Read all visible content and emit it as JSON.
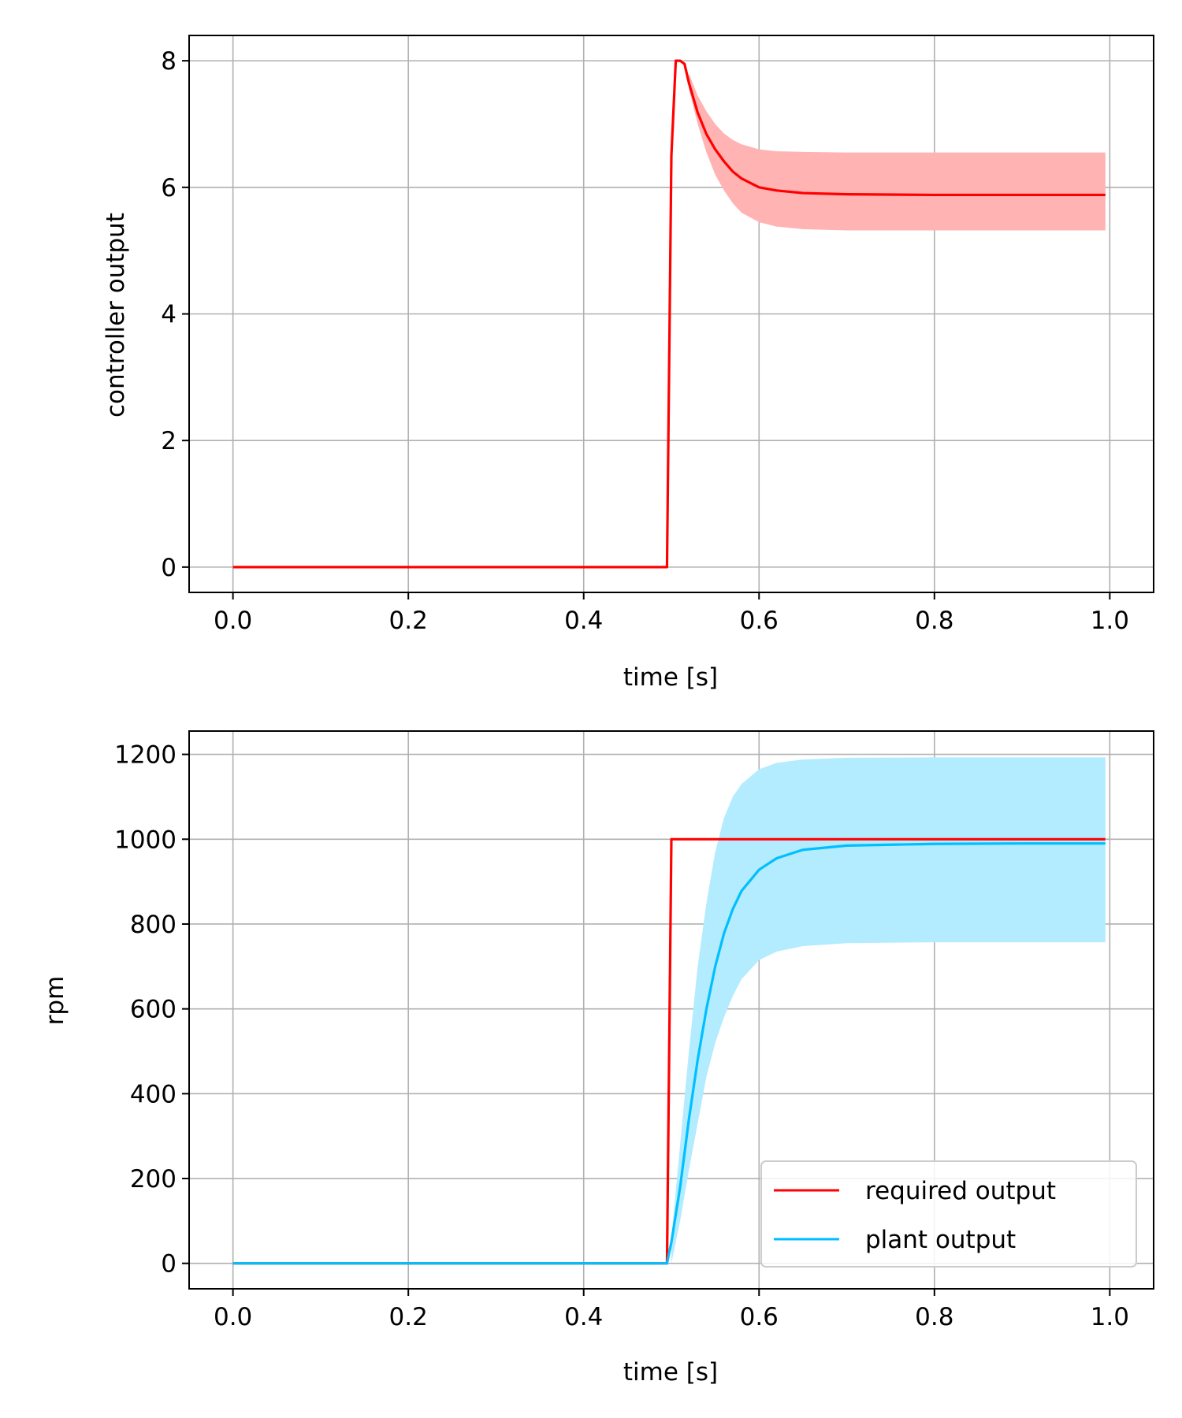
{
  "chart_data": [
    {
      "type": "line",
      "title": "",
      "xlabel": "time [s]",
      "ylabel": "controller output",
      "xlim": [
        -0.05,
        1.05
      ],
      "ylim": [
        -0.4,
        8.4
      ],
      "xticks": [
        "0.0",
        "0.2",
        "0.4",
        "0.6",
        "0.8",
        "1.0"
      ],
      "yticks": [
        "0",
        "2",
        "4",
        "6",
        "8"
      ],
      "grid": true,
      "series": [
        {
          "color": "#ff0000",
          "points": [
            [
              0.0,
              0.0
            ],
            [
              0.495,
              0.0
            ],
            [
              0.5,
              6.5
            ],
            [
              0.505,
              8.0
            ],
            [
              0.51,
              8.0
            ],
            [
              0.515,
              7.95
            ],
            [
              0.52,
              7.65
            ],
            [
              0.53,
              7.18
            ],
            [
              0.54,
              6.84
            ],
            [
              0.55,
              6.6
            ],
            [
              0.56,
              6.41
            ],
            [
              0.57,
              6.25
            ],
            [
              0.58,
              6.14
            ],
            [
              0.6,
              6.0
            ],
            [
              0.62,
              5.95
            ],
            [
              0.65,
              5.91
            ],
            [
              0.7,
              5.89
            ],
            [
              0.8,
              5.88
            ],
            [
              0.9,
              5.88
            ],
            [
              0.995,
              5.88
            ]
          ],
          "band": [
            [
              0.52,
              7.55,
              7.8
            ],
            [
              0.53,
              7.0,
              7.45
            ],
            [
              0.54,
              6.55,
              7.2
            ],
            [
              0.55,
              6.2,
              7.0
            ],
            [
              0.56,
              5.95,
              6.85
            ],
            [
              0.57,
              5.75,
              6.75
            ],
            [
              0.58,
              5.6,
              6.68
            ],
            [
              0.6,
              5.45,
              6.6
            ],
            [
              0.62,
              5.38,
              6.57
            ],
            [
              0.65,
              5.34,
              6.56
            ],
            [
              0.7,
              5.32,
              6.55
            ],
            [
              0.8,
              5.32,
              6.55
            ],
            [
              0.9,
              5.32,
              6.55
            ],
            [
              0.995,
              5.32,
              6.55
            ]
          ],
          "band_color": "#ffb3b3"
        }
      ]
    },
    {
      "type": "line",
      "title": "",
      "xlabel": "time [s]",
      "ylabel": "rpm",
      "xlim": [
        -0.05,
        1.05
      ],
      "ylim": [
        -60,
        1255
      ],
      "xticks": [
        "0.0",
        "0.2",
        "0.4",
        "0.6",
        "0.8",
        "1.0"
      ],
      "yticks": [
        "0",
        "200",
        "400",
        "600",
        "800",
        "1000",
        "1200"
      ],
      "grid": true,
      "legend_position": "lower right",
      "series": [
        {
          "name": "required output",
          "color": "#ff0000",
          "points": [
            [
              0.0,
              0
            ],
            [
              0.495,
              0
            ],
            [
              0.5,
              1000
            ],
            [
              0.995,
              1000
            ]
          ]
        },
        {
          "name": "plant output",
          "color": "#00bfff",
          "points": [
            [
              0.0,
              0
            ],
            [
              0.495,
              0
            ],
            [
              0.5,
              50
            ],
            [
              0.51,
              180
            ],
            [
              0.52,
              340
            ],
            [
              0.53,
              480
            ],
            [
              0.54,
              600
            ],
            [
              0.55,
              700
            ],
            [
              0.56,
              778
            ],
            [
              0.57,
              835
            ],
            [
              0.58,
              878
            ],
            [
              0.6,
              928
            ],
            [
              0.62,
              955
            ],
            [
              0.65,
              975
            ],
            [
              0.7,
              985
            ],
            [
              0.8,
              989
            ],
            [
              0.9,
              990
            ],
            [
              0.995,
              990
            ]
          ],
          "band": [
            [
              0.5,
              0,
              60
            ],
            [
              0.51,
              100,
              280
            ],
            [
              0.52,
              220,
              500
            ],
            [
              0.53,
              330,
              700
            ],
            [
              0.54,
              440,
              850
            ],
            [
              0.55,
              520,
              970
            ],
            [
              0.56,
              580,
              1050
            ],
            [
              0.57,
              630,
              1100
            ],
            [
              0.58,
              670,
              1130
            ],
            [
              0.6,
              715,
              1165
            ],
            [
              0.62,
              735,
              1180
            ],
            [
              0.65,
              748,
              1188
            ],
            [
              0.7,
              755,
              1192
            ],
            [
              0.8,
              757,
              1193
            ],
            [
              0.9,
              757,
              1193
            ],
            [
              0.995,
              757,
              1193
            ]
          ],
          "band_color": "#b3ebff"
        }
      ]
    }
  ]
}
